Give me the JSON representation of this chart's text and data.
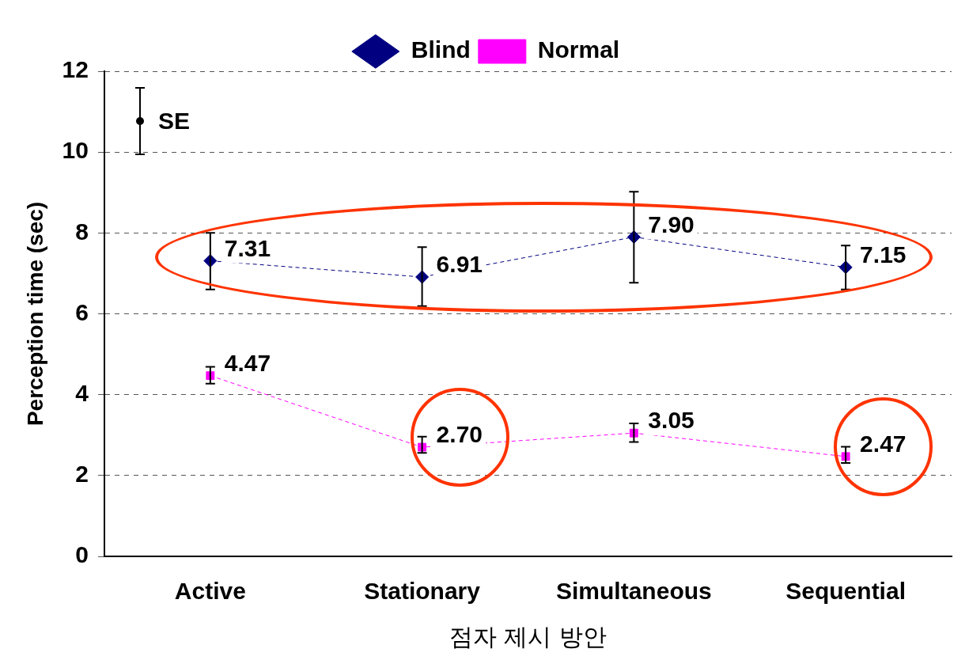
{
  "chart_data": {
    "type": "line",
    "xlabel": "점자 제시 방안",
    "ylabel": "Perception time (sec)",
    "categories": [
      "Active",
      "Stationary",
      "Simultaneous",
      "Sequential"
    ],
    "series": [
      {
        "name": "Blind",
        "color": "#000080",
        "marker": "diamond",
        "values": [
          7.31,
          6.91,
          7.9,
          7.15
        ],
        "errors": [
          [
            6.6,
            8.0
          ],
          [
            6.19,
            7.65
          ],
          [
            6.77,
            9.02
          ],
          [
            6.6,
            7.69
          ]
        ],
        "value_labels": [
          "7.31",
          "6.91",
          "7.90",
          "7.15"
        ]
      },
      {
        "name": "Normal",
        "color": "#ff00ff",
        "marker": "square",
        "values": [
          4.47,
          2.7,
          3.05,
          2.47
        ],
        "errors": [
          [
            4.27,
            4.69
          ],
          [
            2.56,
            2.96
          ],
          [
            2.83,
            3.29
          ],
          [
            2.31,
            2.71
          ]
        ],
        "value_labels": [
          "4.47",
          "2.70",
          "3.05",
          "2.47"
        ]
      }
    ],
    "ylim": [
      0,
      12
    ],
    "yticks": [
      0,
      2,
      4,
      6,
      8,
      10,
      12
    ],
    "grid": "y",
    "legend": "top",
    "line_style": "dashed",
    "annotations": [
      "SE"
    ]
  }
}
